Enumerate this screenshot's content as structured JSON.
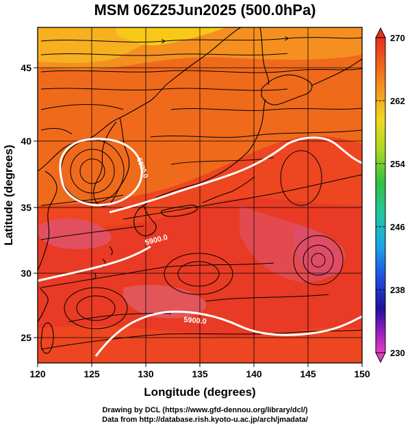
{
  "title": "MSM 06Z25Jun2025 (500.0hPa)",
  "axes": {
    "xlabel": "Longitude (degrees)",
    "ylabel": "Latitude  (degrees)",
    "xticks": [
      "120",
      "125",
      "130",
      "135",
      "140",
      "145",
      "150"
    ],
    "yticks": [
      "25",
      "30",
      "35",
      "40",
      "45"
    ]
  },
  "colorbar": {
    "min": 230,
    "max": 270,
    "ticks": [
      "270",
      "262",
      "254",
      "246",
      "238",
      "230"
    ]
  },
  "contour_labels": [
    "5900.0",
    "5900.0",
    "5900.0"
  ],
  "colors": {
    "warm_core": "#e8301c",
    "mid": "#f06018",
    "cool": "#f5a020",
    "coolest": "#f8c818",
    "contour": "#ffffff",
    "streamline": "#000000"
  },
  "credits": [
    "Drawing by DCL (https://www.gfd-dennou.org/library/dcl/)",
    "Data from http://database.rish.kyoto-u.ac.jp/arch/jmadata/"
  ]
}
